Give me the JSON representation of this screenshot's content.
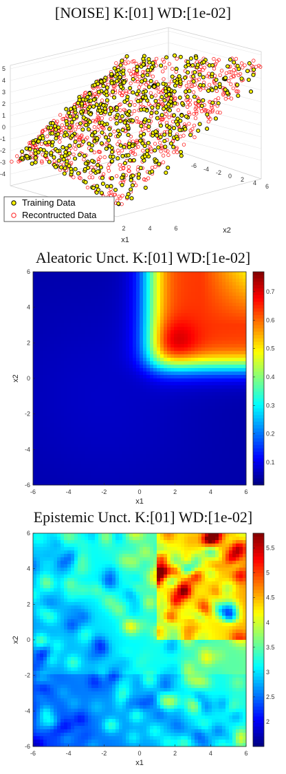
{
  "chart_data": [
    {
      "type": "scatter",
      "title": "[NOISE] K:[01] WD:[1e-02]",
      "xlabel": "x1",
      "ylabel": "x2",
      "xticks": [
        "2",
        "4",
        "6"
      ],
      "yticks": [
        "-6",
        "-4",
        "-2",
        "0",
        "2",
        "4",
        "6"
      ],
      "zticks": [
        "5",
        "4",
        "3",
        "2",
        "1",
        "0",
        "-1",
        "-2",
        "-3",
        "-4"
      ],
      "zlim": [
        -4,
        5
      ],
      "legend": {
        "placement": "bottom-left",
        "entries": [
          "Training Data",
          "Recontructed Data"
        ]
      },
      "series": [
        {
          "name": "Training Data",
          "marker": "filled circle",
          "color": "#f5f000",
          "edge": "#000000"
        },
        {
          "name": "Recontructed Data",
          "marker": "open circle",
          "color": "#ff2020"
        }
      ],
      "grid": true
    },
    {
      "type": "heatmap",
      "title": "Aleatoric Unct. K:[01] WD:[1e-02]",
      "xlabel": "x1",
      "ylabel": "x2",
      "xlim": [
        -6,
        6
      ],
      "ylim": [
        -6,
        6
      ],
      "xticks": [
        "-6",
        "-4",
        "-2",
        "0",
        "2",
        "4",
        "6"
      ],
      "yticks": [
        "6",
        "4",
        "2",
        "0",
        "-2",
        "-4",
        "-6"
      ],
      "colorbar": {
        "range": [
          0.02,
          0.77
        ],
        "ticks": [
          "0.7",
          "0.6",
          "0.5",
          "0.4",
          "0.3",
          "0.2",
          "0.1"
        ]
      },
      "colormap": "jet",
      "peak": {
        "x1": 2,
        "x2": 2,
        "value": 0.77
      }
    },
    {
      "type": "heatmap",
      "title": "Epistemic Unct. K:[01] WD:[1e-02]",
      "xlabel": "x1",
      "ylabel": "x2",
      "xlim": [
        -6,
        6
      ],
      "ylim": [
        -6,
        6
      ],
      "xticks": [
        "-6",
        "-4",
        "-2",
        "0",
        "2",
        "4",
        "6"
      ],
      "yticks": [
        "6",
        "4",
        "2",
        "0",
        "-2",
        "-4",
        "-6"
      ],
      "colorbar": {
        "range": [
          1.5,
          5.8
        ],
        "ticks": [
          "5.5",
          "5",
          "4.5",
          "4",
          "3.5",
          "3",
          "2.5",
          "2"
        ]
      },
      "colormap": "jet",
      "peak": {
        "x1": 5,
        "x2": 5,
        "value": 5.8
      }
    }
  ]
}
